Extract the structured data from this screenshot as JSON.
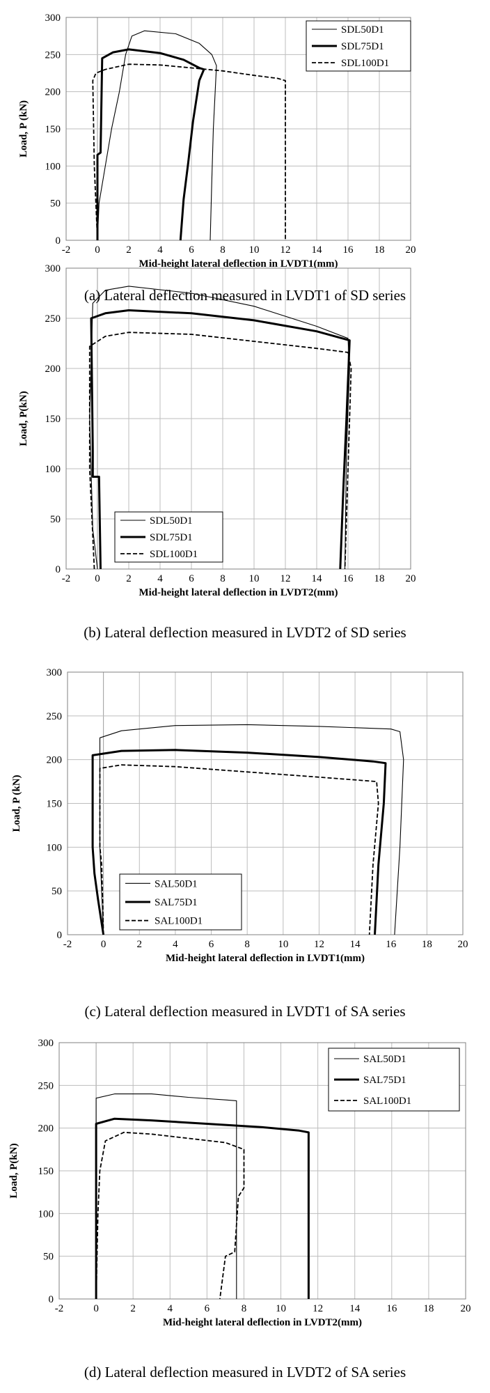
{
  "chart_data": [
    {
      "type": "line",
      "caption": "(a) Lateral deflection measured in LVDT1 of SD series",
      "xlabel": "Mid-height lateral deflection in LVDT1(mm)",
      "ylabel": "Load, P (kN)",
      "xlim": [
        -2,
        20
      ],
      "ylim": [
        0,
        300
      ],
      "xticks": [
        "-2",
        "0",
        "2",
        "4",
        "6",
        "8",
        "10",
        "12",
        "14",
        "16",
        "18",
        "20"
      ],
      "yticks": [
        "0",
        "50",
        "100",
        "150",
        "200",
        "250",
        "300"
      ],
      "grid": true,
      "legend": "top-right",
      "series": [
        {
          "name": "SDL50D1",
          "style": "thin",
          "points": [
            [
              0,
              0
            ],
            [
              0.1,
              50
            ],
            [
              0.5,
              100
            ],
            [
              0.9,
              150
            ],
            [
              1.4,
              200
            ],
            [
              1.8,
              250
            ],
            [
              2.2,
              275
            ],
            [
              3,
              282
            ],
            [
              5,
              278
            ],
            [
              6.5,
              265
            ],
            [
              7.3,
              250
            ],
            [
              7.6,
              235
            ],
            [
              7.4,
              150
            ],
            [
              7.3,
              80
            ],
            [
              7.2,
              0
            ]
          ]
        },
        {
          "name": "SDL75D1",
          "style": "thick",
          "points": [
            [
              0,
              0
            ],
            [
              0,
              115
            ],
            [
              0.2,
              118
            ],
            [
              0.3,
              245
            ],
            [
              1,
              253
            ],
            [
              2,
              257
            ],
            [
              4,
              252
            ],
            [
              5.5,
              243
            ],
            [
              6.5,
              232
            ],
            [
              6.8,
              230
            ],
            [
              6.5,
              215
            ],
            [
              6.1,
              160
            ],
            [
              5.8,
              105
            ],
            [
              5.5,
              55
            ],
            [
              5.3,
              0
            ]
          ]
        },
        {
          "name": "SDL100D1",
          "style": "dashed",
          "points": [
            [
              0,
              0
            ],
            [
              -0.2,
              100
            ],
            [
              -0.3,
              215
            ],
            [
              -0.1,
              225
            ],
            [
              0.5,
              230
            ],
            [
              2,
              237
            ],
            [
              4,
              236
            ],
            [
              6,
              232
            ],
            [
              8,
              228
            ],
            [
              10,
              222
            ],
            [
              11.5,
              218
            ],
            [
              12,
              215
            ],
            [
              12,
              0
            ]
          ]
        }
      ]
    },
    {
      "type": "line",
      "caption": "(b) Lateral deflection measured in LVDT2 of SD series",
      "xlabel": "Mid-height lateral deflection in LVDT2(mm)",
      "ylabel": "Load, P(kN)",
      "xlim": [
        -2,
        20
      ],
      "ylim": [
        0,
        300
      ],
      "xticks": [
        "-2",
        "0",
        "2",
        "4",
        "6",
        "8",
        "10",
        "12",
        "14",
        "16",
        "18",
        "20"
      ],
      "yticks": [
        "0",
        "50",
        "100",
        "150",
        "200",
        "250",
        "300"
      ],
      "grid": true,
      "legend": "bottom-left",
      "series": [
        {
          "name": "SDL50D1",
          "style": "thin",
          "points": [
            [
              0,
              0
            ],
            [
              -0.3,
              40
            ],
            [
              -0.5,
              150
            ],
            [
              -0.3,
              265
            ],
            [
              0.5,
              278
            ],
            [
              2,
              282
            ],
            [
              6,
              275
            ],
            [
              10,
              262
            ],
            [
              14,
              242
            ],
            [
              16,
              230
            ],
            [
              16.1,
              200
            ],
            [
              15.9,
              120
            ],
            [
              15.8,
              0
            ]
          ]
        },
        {
          "name": "SDL75D1",
          "style": "thick",
          "points": [
            [
              0.2,
              0
            ],
            [
              0.1,
              92
            ],
            [
              -0.3,
              92
            ],
            [
              -0.3,
              118
            ],
            [
              -0.4,
              250
            ],
            [
              0.5,
              255
            ],
            [
              2,
              258
            ],
            [
              6,
              255
            ],
            [
              10,
              248
            ],
            [
              14,
              237
            ],
            [
              16.1,
              228
            ],
            [
              15.9,
              150
            ],
            [
              15.7,
              80
            ],
            [
              15.5,
              0
            ]
          ]
        },
        {
          "name": "SDL100D1",
          "style": "dashed",
          "points": [
            [
              -0.2,
              0
            ],
            [
              -0.5,
              100
            ],
            [
              -0.5,
              222
            ],
            [
              0.5,
              232
            ],
            [
              2,
              236
            ],
            [
              6,
              234
            ],
            [
              10,
              227
            ],
            [
              14,
              220
            ],
            [
              16,
              216
            ],
            [
              16.2,
              200
            ],
            [
              16,
              100
            ],
            [
              15.8,
              0
            ]
          ]
        }
      ]
    },
    {
      "type": "line",
      "caption": "(c) Lateral deflection measured in LVDT1 of SA series",
      "xlabel": "Mid-height lateral deflection in LVDT1(mm)",
      "ylabel": "Load, P (kN)",
      "xlim": [
        -2,
        20
      ],
      "ylim": [
        0,
        300
      ],
      "xticks": [
        "-2",
        "0",
        "2",
        "4",
        "6",
        "8",
        "10",
        "12",
        "14",
        "16",
        "18",
        "20"
      ],
      "yticks": [
        "0",
        "50",
        "100",
        "150",
        "200",
        "250",
        "300"
      ],
      "grid": true,
      "legend": "bottom-left",
      "series": [
        {
          "name": "SAL50D1",
          "style": "thin",
          "points": [
            [
              0,
              0
            ],
            [
              -0.2,
              100
            ],
            [
              -0.2,
              225
            ],
            [
              1,
              233
            ],
            [
              4,
              239
            ],
            [
              8,
              240
            ],
            [
              12,
              238
            ],
            [
              16,
              235
            ],
            [
              16.5,
              232
            ],
            [
              16.7,
              200
            ],
            [
              16.5,
              100
            ],
            [
              16.2,
              0
            ]
          ]
        },
        {
          "name": "SAL75D1",
          "style": "thick",
          "points": [
            [
              0,
              0
            ],
            [
              -0.3,
              40
            ],
            [
              -0.5,
              70
            ],
            [
              -0.6,
              100
            ],
            [
              -0.6,
              205
            ],
            [
              1,
              210
            ],
            [
              4,
              211
            ],
            [
              8,
              208
            ],
            [
              12,
              203
            ],
            [
              15,
              198
            ],
            [
              15.7,
              196
            ],
            [
              15.6,
              150
            ],
            [
              15.3,
              80
            ],
            [
              15.1,
              0
            ]
          ]
        },
        {
          "name": "SAL100D1",
          "style": "dashed",
          "points": [
            [
              0,
              0
            ],
            [
              -0.1,
              80
            ],
            [
              -0.2,
              100
            ],
            [
              -0.2,
              190
            ],
            [
              1,
              194
            ],
            [
              4,
              192
            ],
            [
              8,
              186
            ],
            [
              12,
              180
            ],
            [
              15.2,
              175
            ],
            [
              15.3,
              150
            ],
            [
              15,
              80
            ],
            [
              14.8,
              0
            ]
          ]
        }
      ]
    },
    {
      "type": "line",
      "caption": "(d) Lateral deflection measured in LVDT2 of SA series",
      "xlabel": "Mid-height lateral deflection in LVDT2(mm)",
      "ylabel": "Load, P(kN)",
      "xlim": [
        -2,
        20
      ],
      "ylim": [
        0,
        300
      ],
      "xticks": [
        "-2",
        "0",
        "2",
        "4",
        "6",
        "8",
        "10",
        "12",
        "14",
        "16",
        "18",
        "20"
      ],
      "yticks": [
        "0",
        "50",
        "100",
        "150",
        "200",
        "250",
        "300"
      ],
      "grid": true,
      "legend": "top-right",
      "series": [
        {
          "name": "SAL50D1",
          "style": "thin",
          "points": [
            [
              0,
              0
            ],
            [
              0,
              235
            ],
            [
              1,
              240
            ],
            [
              3,
              240
            ],
            [
              5,
              236
            ],
            [
              7,
              233
            ],
            [
              7.6,
              232
            ],
            [
              7.6,
              0
            ]
          ]
        },
        {
          "name": "SAL75D1",
          "style": "thick",
          "points": [
            [
              0,
              0
            ],
            [
              0,
              205
            ],
            [
              1,
              211
            ],
            [
              3,
              209
            ],
            [
              6,
              205
            ],
            [
              9,
              201
            ],
            [
              11,
              197
            ],
            [
              11.5,
              195
            ],
            [
              11.5,
              0
            ]
          ]
        },
        {
          "name": "SAL100D1",
          "style": "dashed",
          "points": [
            [
              0,
              0
            ],
            [
              0.1,
              100
            ],
            [
              0.2,
              150
            ],
            [
              0.5,
              185
            ],
            [
              1.5,
              195
            ],
            [
              3,
              193
            ],
            [
              5,
              188
            ],
            [
              7,
              183
            ],
            [
              8,
              175
            ],
            [
              8,
              130
            ],
            [
              7.7,
              120
            ],
            [
              7.5,
              55
            ],
            [
              7,
              50
            ],
            [
              6.7,
              0
            ]
          ]
        }
      ]
    }
  ]
}
